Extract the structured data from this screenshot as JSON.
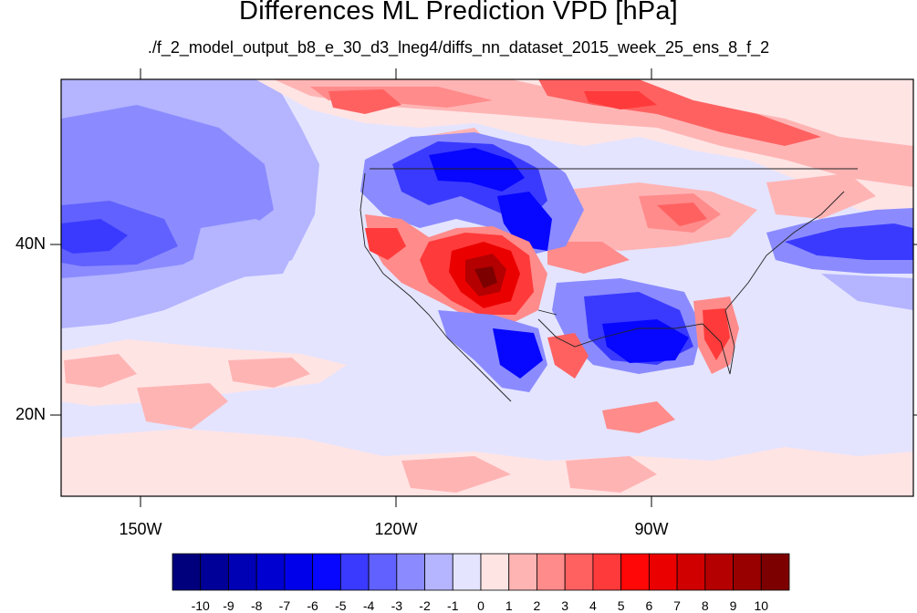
{
  "title": "Differences ML Prediction VPD [hPa]",
  "subtitle": "./f_2_model_output_b8_e_30_d3_lneg4/diffs_nn_dataset_2015_week_25_ens_8_f_2",
  "axes": {
    "lat_labels": [
      "40N",
      "20N"
    ],
    "lon_labels": [
      "150W",
      "120W",
      "90W"
    ]
  },
  "colorbar": {
    "labels": [
      "-10",
      "-9",
      "-8",
      "-7",
      "-6",
      "-5",
      "-4",
      "-3",
      "-2",
      "-1",
      "0",
      "1",
      "2",
      "3",
      "4",
      "5",
      "6",
      "7",
      "8",
      "9",
      "10"
    ],
    "colors": [
      "#00007d",
      "#000098",
      "#0000b4",
      "#0000d0",
      "#0000eb",
      "#0707ff",
      "#3a3aff",
      "#6161ff",
      "#8b8bff",
      "#b4b4ff",
      "#e4e4ff",
      "#ffe4e4",
      "#ffb4b4",
      "#ff8b8b",
      "#ff6161",
      "#ff3a3a",
      "#ff0707",
      "#eb0000",
      "#d00000",
      "#b40000",
      "#980000",
      "#7d0000"
    ]
  },
  "map": {
    "background_color": "#e4e4ff",
    "regions": [
      {
        "name": "north-pacific-negative",
        "level": "-2"
      },
      {
        "name": "pacific-strong-negative",
        "level": "-4"
      },
      {
        "name": "southwest-us-positive",
        "level": "8"
      },
      {
        "name": "great-basin-negative",
        "level": "-5"
      },
      {
        "name": "gulf-coast-negative",
        "level": "-6"
      },
      {
        "name": "canada-positive",
        "level": "4"
      },
      {
        "name": "florida-positive",
        "level": "4"
      },
      {
        "name": "tropical-pacific-positive",
        "level": "2"
      },
      {
        "name": "atlantic-negative",
        "level": "-4"
      }
    ]
  }
}
